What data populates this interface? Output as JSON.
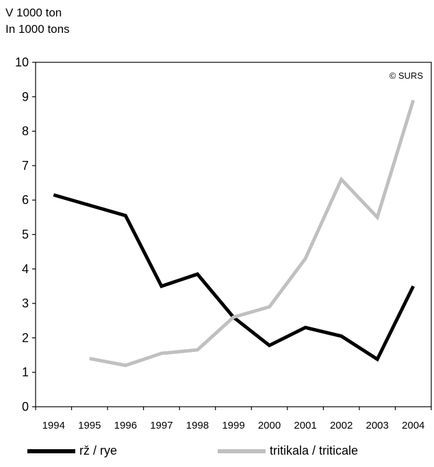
{
  "unit_label_si": "V 1000 ton",
  "unit_label_en": "In 1000 tons",
  "credit": "© SURS",
  "chart_data": {
    "type": "line",
    "title": "",
    "xlabel": "",
    "ylabel": "",
    "x": [
      "1994",
      "1995",
      "1996",
      "1997",
      "1998",
      "1999",
      "2000",
      "2001",
      "2002",
      "2003",
      "2004"
    ],
    "ylim": [
      0,
      10
    ],
    "yticks": [
      0,
      1,
      2,
      3,
      4,
      5,
      6,
      7,
      8,
      9,
      10
    ],
    "grid": false,
    "legend_position": "bottom",
    "series": [
      {
        "name": "rž / rye",
        "color": "#000000",
        "values": [
          6.15,
          5.85,
          5.55,
          3.5,
          3.85,
          2.6,
          1.78,
          2.3,
          2.05,
          1.38,
          3.5
        ]
      },
      {
        "name": "tritikala / triticale",
        "color": "#c0c0c0",
        "values": [
          null,
          1.4,
          1.2,
          1.55,
          1.65,
          2.6,
          2.9,
          4.3,
          6.6,
          5.5,
          8.9
        ]
      }
    ]
  }
}
